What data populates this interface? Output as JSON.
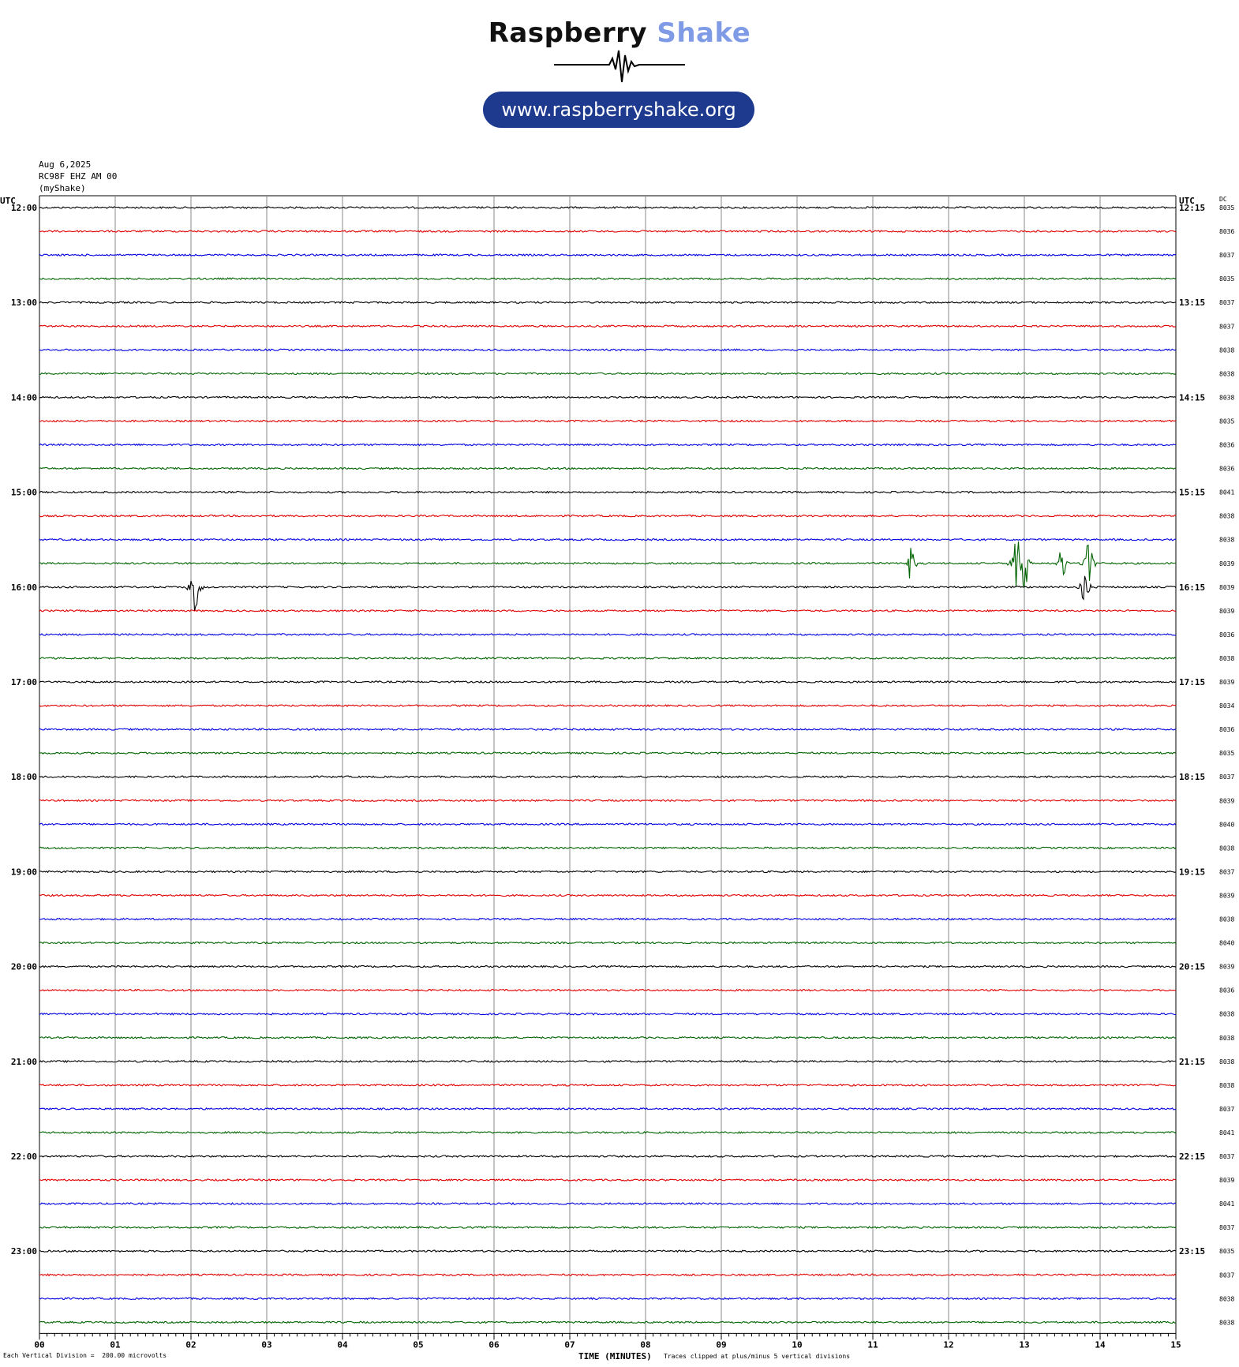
{
  "header": {
    "brand_primary": "Raspberry",
    "brand_secondary": "Shake",
    "url": "www.raspberryshake.org",
    "date": "Aug 6,2025",
    "station": "RC98F EHZ AM 00",
    "network": "(myShake)"
  },
  "colors": {
    "brand_blue": "#7f9be6",
    "pill": "#1d3a8f",
    "trace_cycle": [
      "#000000",
      "#e00000",
      "#0000e0",
      "#006400"
    ],
    "grid": "#888888"
  },
  "chart_data": {
    "type": "line",
    "x_axis": {
      "label": "TIME (MINUTES)",
      "range": [
        0,
        15
      ],
      "ticks": [
        "00",
        "01",
        "02",
        "03",
        "04",
        "05",
        "06",
        "07",
        "08",
        "09",
        "10",
        "11",
        "12",
        "13",
        "14",
        "15"
      ]
    },
    "left_axis_label": "UTC",
    "right_axis_label": "UTC",
    "dc_label": "DC",
    "scale_note": "Each Vertical Division =  200.00 microvolts",
    "clip_note": "Traces clipped at plus/minus 5 vertical divisions",
    "rows": [
      {
        "left": "12:00",
        "right": "12:15",
        "dc": "8035"
      },
      {
        "left": "",
        "right": "",
        "dc": "8036"
      },
      {
        "left": "",
        "right": "",
        "dc": "8037"
      },
      {
        "left": "",
        "right": "",
        "dc": "8035"
      },
      {
        "left": "13:00",
        "right": "13:15",
        "dc": "8037"
      },
      {
        "left": "",
        "right": "",
        "dc": "8037"
      },
      {
        "left": "",
        "right": "",
        "dc": "8038"
      },
      {
        "left": "",
        "right": "",
        "dc": "8038"
      },
      {
        "left": "14:00",
        "right": "14:15",
        "dc": "8038"
      },
      {
        "left": "",
        "right": "",
        "dc": "8035"
      },
      {
        "left": "",
        "right": "",
        "dc": "8036"
      },
      {
        "left": "",
        "right": "",
        "dc": "8036"
      },
      {
        "left": "15:00",
        "right": "15:15",
        "dc": "8041"
      },
      {
        "left": "",
        "right": "",
        "dc": "8038"
      },
      {
        "left": "",
        "right": "",
        "dc": "8038"
      },
      {
        "left": "",
        "right": "",
        "dc": "8039"
      },
      {
        "left": "16:00",
        "right": "16:15",
        "dc": "8039"
      },
      {
        "left": "",
        "right": "",
        "dc": "8039"
      },
      {
        "left": "",
        "right": "",
        "dc": "8036"
      },
      {
        "left": "",
        "right": "",
        "dc": "8038"
      },
      {
        "left": "17:00",
        "right": "17:15",
        "dc": "8039"
      },
      {
        "left": "",
        "right": "",
        "dc": "8034"
      },
      {
        "left": "",
        "right": "",
        "dc": "8036"
      },
      {
        "left": "",
        "right": "",
        "dc": "8035"
      },
      {
        "left": "18:00",
        "right": "18:15",
        "dc": "8037"
      },
      {
        "left": "",
        "right": "",
        "dc": "8039"
      },
      {
        "left": "",
        "right": "",
        "dc": "8040"
      },
      {
        "left": "",
        "right": "",
        "dc": "8038"
      },
      {
        "left": "19:00",
        "right": "19:15",
        "dc": "8037"
      },
      {
        "left": "",
        "right": "",
        "dc": "8039"
      },
      {
        "left": "",
        "right": "",
        "dc": "8038"
      },
      {
        "left": "",
        "right": "",
        "dc": "8040"
      },
      {
        "left": "20:00",
        "right": "20:15",
        "dc": "8039"
      },
      {
        "left": "",
        "right": "",
        "dc": "8036"
      },
      {
        "left": "",
        "right": "",
        "dc": "8038"
      },
      {
        "left": "",
        "right": "",
        "dc": "8038"
      },
      {
        "left": "21:00",
        "right": "21:15",
        "dc": "8038"
      },
      {
        "left": "",
        "right": "",
        "dc": "8038"
      },
      {
        "left": "",
        "right": "",
        "dc": "8037"
      },
      {
        "left": "",
        "right": "",
        "dc": "8041"
      },
      {
        "left": "22:00",
        "right": "22:15",
        "dc": "8037"
      },
      {
        "left": "",
        "right": "",
        "dc": "8039"
      },
      {
        "left": "",
        "right": "",
        "dc": "8041"
      },
      {
        "left": "",
        "right": "",
        "dc": "8037"
      },
      {
        "left": "23:00",
        "right": "23:15",
        "dc": "8035"
      },
      {
        "left": "",
        "right": "",
        "dc": "8037"
      },
      {
        "left": "",
        "right": "",
        "dc": "8038"
      },
      {
        "left": "",
        "right": "",
        "dc": "8038"
      }
    ],
    "events": [
      {
        "row": 15,
        "minute": 11.5,
        "amplitude_div": 1.2
      },
      {
        "row": 15,
        "minute": 12.9,
        "amplitude_div": 2.0
      },
      {
        "row": 15,
        "minute": 13.0,
        "amplitude_div": 2.4
      },
      {
        "row": 15,
        "minute": 13.5,
        "amplitude_div": 1.3
      },
      {
        "row": 15,
        "minute": 13.85,
        "amplitude_div": 2.0
      },
      {
        "row": 16,
        "minute": 2.05,
        "amplitude_div": 2.0
      },
      {
        "row": 16,
        "minute": 13.8,
        "amplitude_div": 1.5
      }
    ]
  }
}
